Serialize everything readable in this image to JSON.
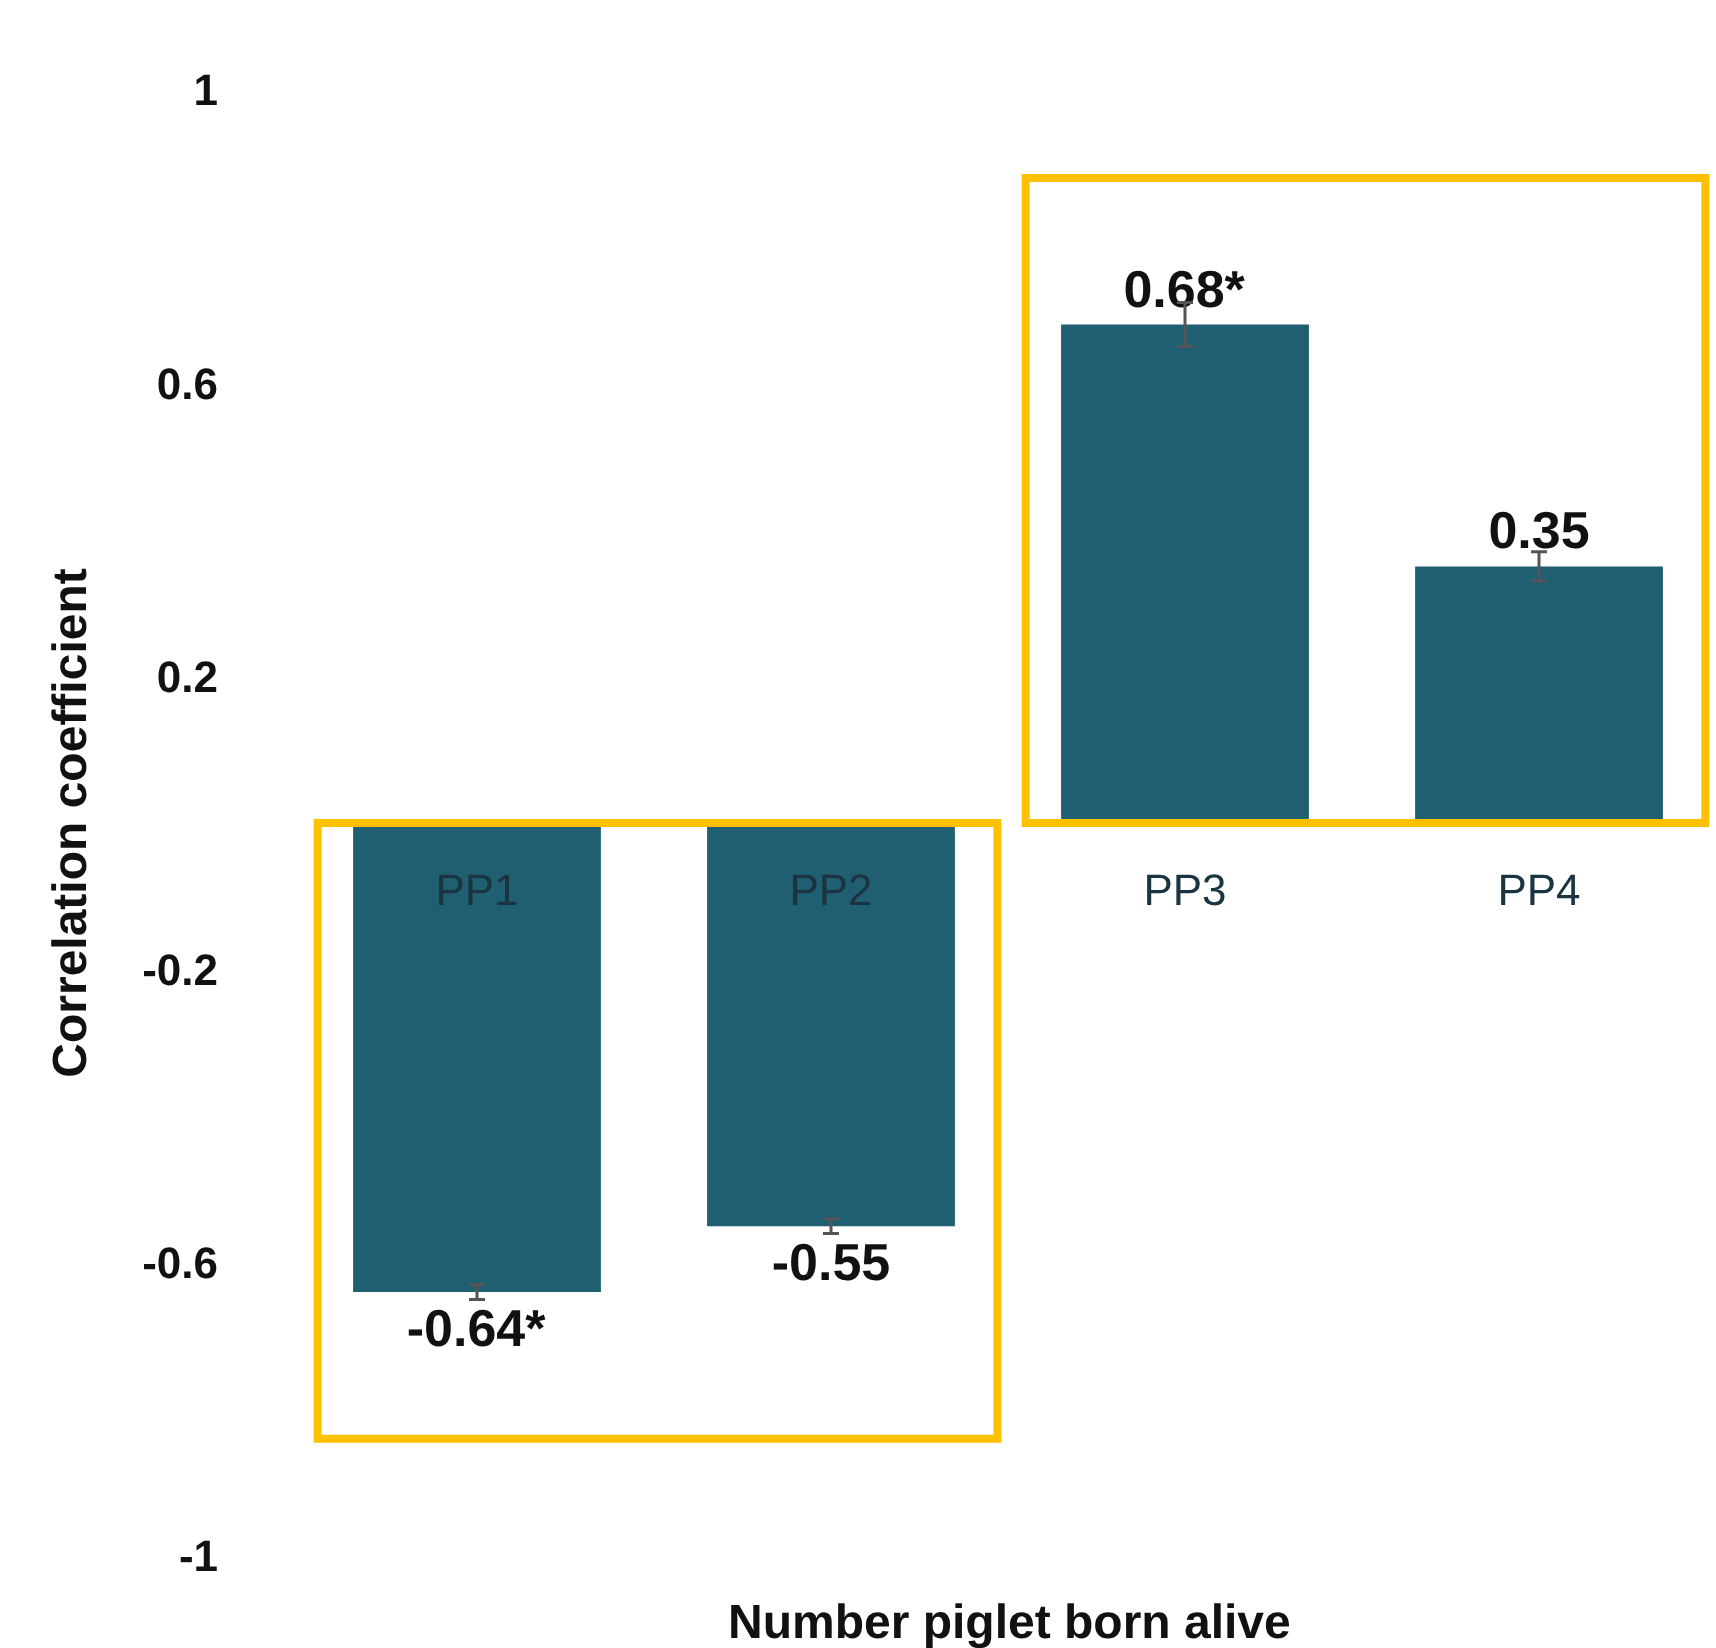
{
  "chart_data": {
    "type": "bar",
    "ylabel": "Correlation coefficient",
    "xlabel": "Number piglet born alive",
    "categories": [
      "PP1",
      "PP2",
      "PP3",
      "PP4"
    ],
    "values": [
      -0.64,
      -0.55,
      0.68,
      0.35
    ],
    "errors": [
      0.01,
      0.01,
      0.03,
      0.02
    ],
    "value_labels": [
      "-0.64*",
      "-0.55",
      "0.68*",
      "0.35"
    ],
    "color": "#205f72",
    "ylim": [
      -1,
      1
    ],
    "yticks": [
      -1,
      -0.6,
      -0.2,
      0.2,
      0.6,
      1
    ],
    "grid": false,
    "legend": false
  }
}
